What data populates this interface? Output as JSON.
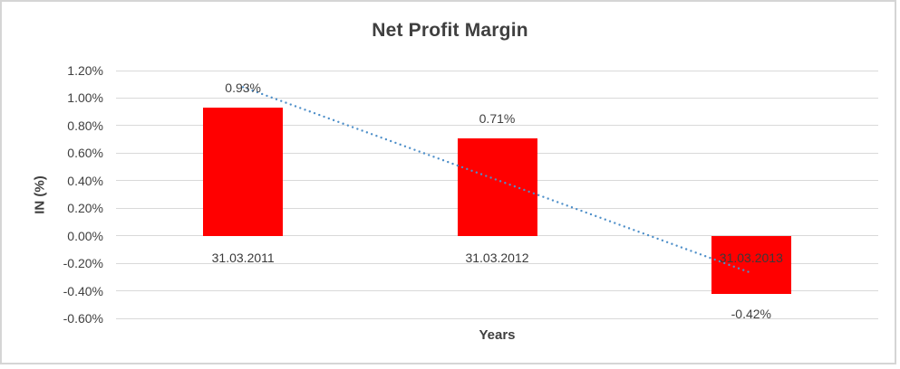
{
  "chart_data": {
    "type": "bar",
    "title": "Net Profit Margin",
    "categories": [
      "31.03.2011",
      "31.03.2012",
      "31.03.2013"
    ],
    "values": [
      0.93,
      0.71,
      -0.42
    ],
    "data_labels": [
      "0.93%",
      "0.71%",
      "-0.42%"
    ],
    "xlabel": "Years",
    "ylabel": "IN (%)",
    "y_axis": {
      "min": -0.6,
      "max": 1.2,
      "step": 0.2,
      "tick_labels": [
        "1.20%",
        "1.00%",
        "0.80%",
        "0.60%",
        "0.40%",
        "0.20%",
        "0.00%",
        "-0.20%",
        "-0.40%",
        "-0.60%"
      ]
    },
    "grid": true,
    "legend": "none",
    "bar_color": "#FF0000",
    "trendline": {
      "type": "linear",
      "style": "dotted",
      "color": "#4E8FC9",
      "start_value": 1.08,
      "end_value": -0.27
    },
    "colors": {
      "title_text": "#3F3F3F",
      "axis_text": "#404040",
      "gridline": "#D9D9D9",
      "frame_border": "#D5D5D5",
      "background": "#FFFFFF"
    }
  }
}
